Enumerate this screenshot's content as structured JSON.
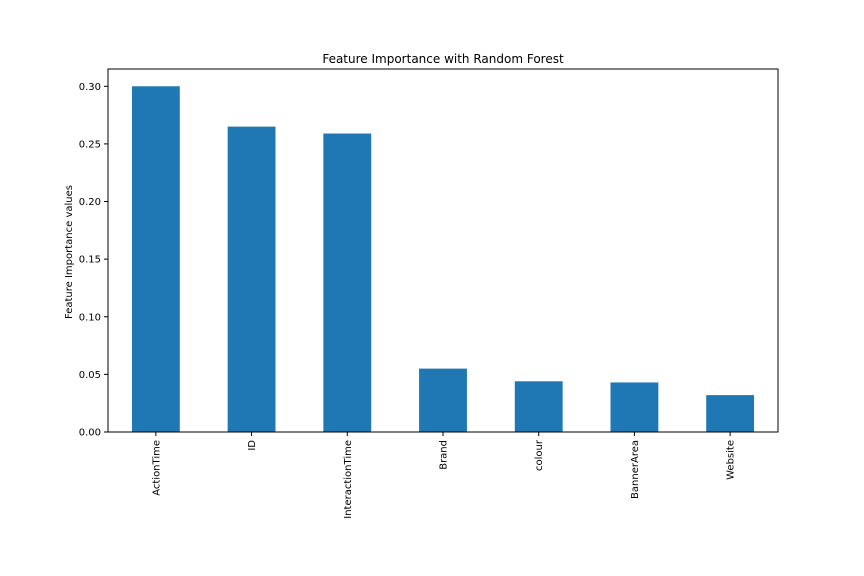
{
  "chart_data": {
    "type": "bar",
    "title": "Feature Importance with Random Forest",
    "xlabel": "",
    "ylabel": "Feature Importance values",
    "categories": [
      "ActionTime",
      "ID",
      "InteractionTime",
      "Brand",
      "colour",
      "BannerArea",
      "Website"
    ],
    "values": [
      0.3,
      0.265,
      0.259,
      0.055,
      0.044,
      0.043,
      0.032
    ],
    "ylim": [
      0,
      0.315
    ],
    "yticks": [
      "0.00",
      "0.05",
      "0.10",
      "0.15",
      "0.20",
      "0.25",
      "0.30"
    ],
    "grid": false,
    "bar_color": "#1f77b4"
  }
}
